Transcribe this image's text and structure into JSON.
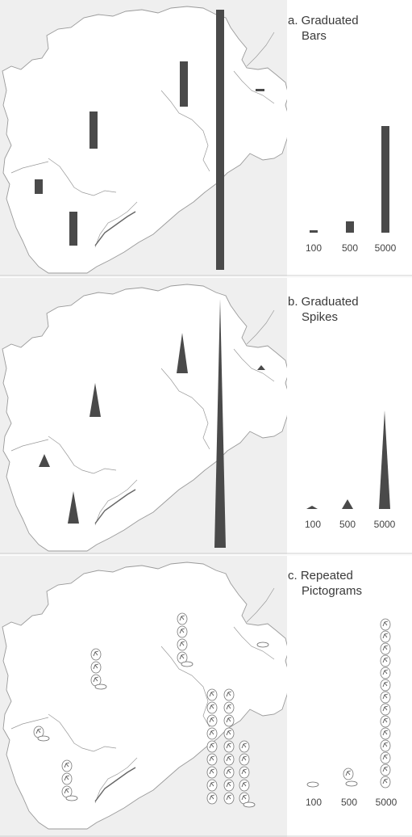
{
  "panels": [
    {
      "id": "a",
      "title_line1": "a. Graduated",
      "title_line2": "Bars",
      "symbol": "bar",
      "legend_labels": [
        "100",
        "500",
        "5000"
      ]
    },
    {
      "id": "b",
      "title_line1": "b. Graduated",
      "title_line2": "Spikes",
      "symbol": "spike",
      "legend_labels": [
        "100",
        "500",
        "5000"
      ]
    },
    {
      "id": "c",
      "title_line1": "c. Repeated",
      "title_line2": "Pictograms",
      "symbol": "pictogram",
      "legend_labels": [
        "100",
        "500",
        "5000"
      ]
    }
  ],
  "legend_values": [
    100,
    500,
    5000
  ],
  "map_values": [
    560,
    2120,
    780,
    260,
    790,
    70,
    9000
  ],
  "colors": {
    "symbol_fill": "#4a4a4a",
    "map_line": "#9a9a9a",
    "land": "#ffffff",
    "sea_hatch": "#e6e6e6"
  }
}
